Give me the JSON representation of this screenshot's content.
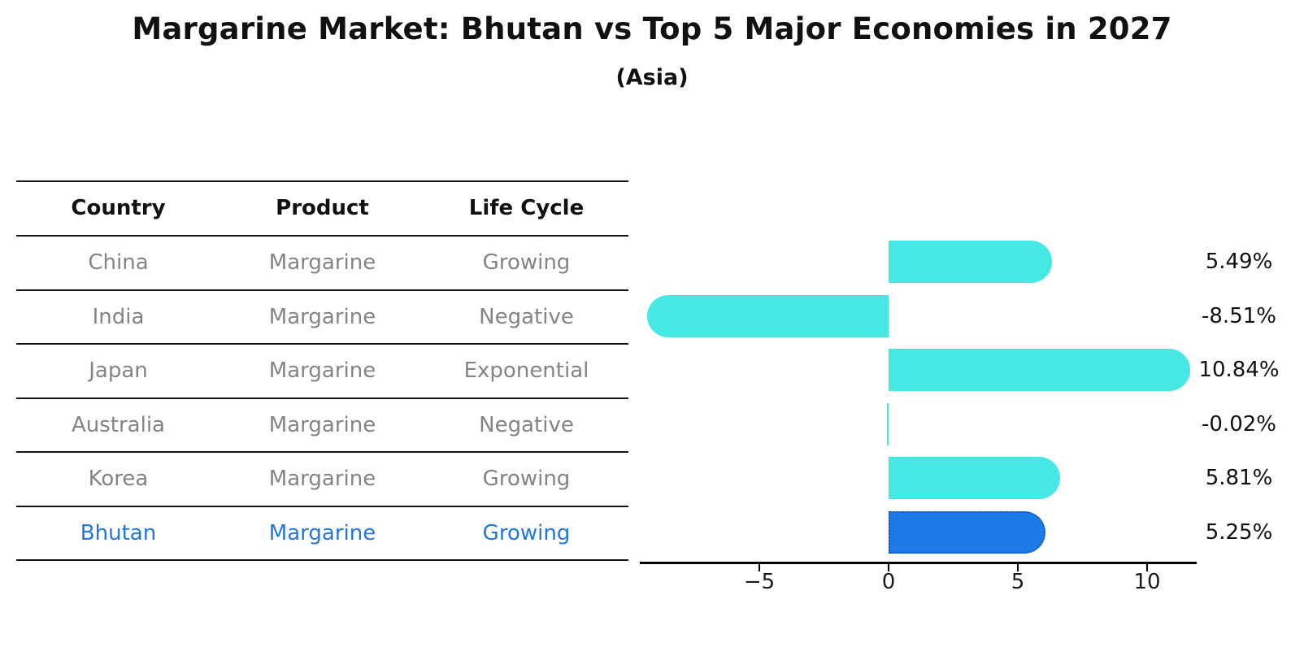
{
  "title": "Margarine Market: Bhutan vs Top 5 Major Economies in 2027",
  "subtitle": "(Asia)",
  "table": {
    "headers": [
      "Country",
      "Product",
      "Life Cycle"
    ],
    "rows": [
      {
        "country": "China",
        "product": "Margarine",
        "life_cycle": "Growing",
        "highlighted": false
      },
      {
        "country": "India",
        "product": "Margarine",
        "life_cycle": "Negative",
        "highlighted": false
      },
      {
        "country": "Japan",
        "product": "Margarine",
        "life_cycle": "Exponential",
        "highlighted": false
      },
      {
        "country": "Australia",
        "product": "Margarine",
        "life_cycle": "Negative",
        "highlighted": false
      },
      {
        "country": "Korea",
        "product": "Margarine",
        "life_cycle": "Growing",
        "highlighted": false
      },
      {
        "country": "Bhutan",
        "product": "Margarine",
        "life_cycle": "Growing",
        "highlighted": true
      }
    ]
  },
  "chart_data": {
    "type": "bar",
    "orientation": "horizontal",
    "title": "Margarine Market: Bhutan vs Top 5 Major Economies in 2027",
    "subtitle": "(Asia)",
    "categories": [
      "China",
      "India",
      "Japan",
      "Australia",
      "Korea",
      "Bhutan"
    ],
    "values": [
      5.49,
      -8.51,
      10.84,
      -0.02,
      5.81,
      5.25
    ],
    "value_labels": [
      "5.49%",
      "-8.51%",
      "10.84%",
      "-0.02%",
      "5.81%",
      "5.25%"
    ],
    "highlight_index": 5,
    "x_ticks": [
      -5,
      0,
      5,
      10
    ],
    "x_tick_labels": [
      "−5",
      "0",
      "5",
      "10"
    ],
    "xlim": [
      -9.6,
      11.9
    ],
    "grid": false,
    "legend": "none",
    "colors": {
      "bar": "#45e8e2",
      "highlight_bar": "#1c7be9",
      "highlight_border": "#0b57c9",
      "highlight_text": "#2277dd",
      "table_text": "#848484",
      "header_text": "#111111"
    }
  }
}
